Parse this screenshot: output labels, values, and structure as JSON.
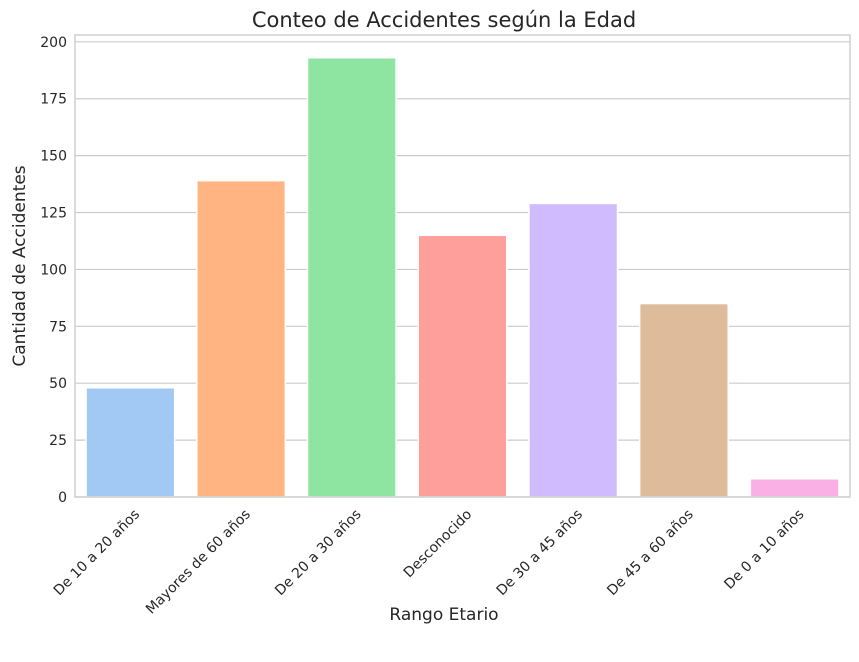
{
  "chart_data": {
    "type": "bar",
    "title": "Conteo de Accidentes según la Edad",
    "xlabel": "Rango Etario",
    "ylabel": "Cantidad de Accidentes",
    "categories": [
      "De 10 a 20 años",
      "Mayores de 60 años",
      "De 20 a 30 años",
      "Desconocido",
      "De 30 a 45 años",
      "De 45 a 60 años",
      "De 0 a 10 años"
    ],
    "values": [
      48,
      139,
      193,
      115,
      129,
      85,
      8
    ],
    "colors": [
      "#a1c9f4",
      "#ffb482",
      "#8de5a1",
      "#ff9f9b",
      "#d0bbff",
      "#debb9b",
      "#fab0e4"
    ],
    "ylim": [
      0,
      203
    ],
    "yticks": [
      0,
      25,
      50,
      75,
      100,
      125,
      150,
      175,
      200
    ],
    "grid": true,
    "legend": "none"
  }
}
